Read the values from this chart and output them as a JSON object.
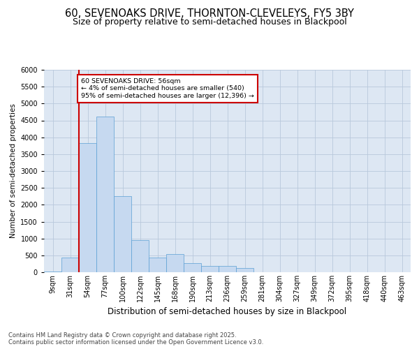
{
  "title1": "60, SEVENOAKS DRIVE, THORNTON-CLEVELEYS, FY5 3BY",
  "title2": "Size of property relative to semi-detached houses in Blackpool",
  "xlabel": "Distribution of semi-detached houses by size in Blackpool",
  "ylabel": "Number of semi-detached properties",
  "bin_labels": [
    "9sqm",
    "31sqm",
    "54sqm",
    "77sqm",
    "100sqm",
    "122sqm",
    "145sqm",
    "168sqm",
    "190sqm",
    "213sqm",
    "236sqm",
    "259sqm",
    "281sqm",
    "304sqm",
    "327sqm",
    "349sqm",
    "372sqm",
    "395sqm",
    "418sqm",
    "440sqm",
    "463sqm"
  ],
  "bar_values": [
    30,
    430,
    3820,
    4620,
    2250,
    960,
    430,
    530,
    265,
    185,
    185,
    120,
    0,
    0,
    0,
    0,
    0,
    0,
    0,
    0,
    0
  ],
  "bar_color": "#c6d9f0",
  "bar_edge_color": "#5a9fd4",
  "grid_color": "#b8c8dc",
  "background_color": "#dde7f3",
  "vline_color": "#cc0000",
  "annotation_text": "60 SEVENOAKS DRIVE: 56sqm\n← 4% of semi-detached houses are smaller (540)\n95% of semi-detached houses are larger (12,396) →",
  "annotation_box_color": "#cc0000",
  "ylim": [
    0,
    6000
  ],
  "yticks": [
    0,
    500,
    1000,
    1500,
    2000,
    2500,
    3000,
    3500,
    4000,
    4500,
    5000,
    5500,
    6000
  ],
  "footer_text": "Contains HM Land Registry data © Crown copyright and database right 2025.\nContains public sector information licensed under the Open Government Licence v3.0.",
  "title1_fontsize": 10.5,
  "title2_fontsize": 9,
  "xlabel_fontsize": 8.5,
  "ylabel_fontsize": 7.5,
  "tick_fontsize": 7,
  "footer_fontsize": 6
}
